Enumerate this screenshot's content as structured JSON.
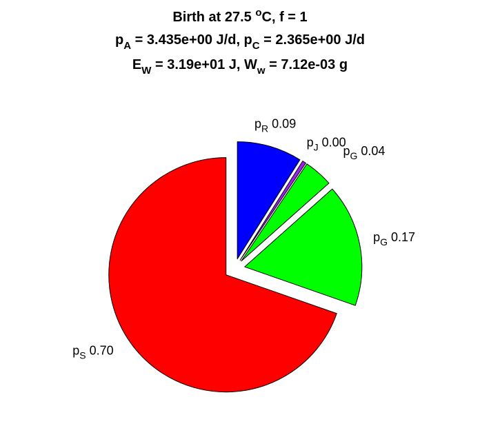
{
  "chart_data": {
    "type": "pie",
    "title_lines": [
      [
        {
          "t": "Birth at 27.5 "
        },
        {
          "t": "o",
          "sup": true
        },
        {
          "t": "C, f = 1"
        }
      ],
      [
        {
          "t": "p"
        },
        {
          "t": "A",
          "sub": true
        },
        {
          "t": " = 3.435e+00 J/d, p"
        },
        {
          "t": "C",
          "sub": true
        },
        {
          "t": " = 2.365e+00 J/d"
        }
      ],
      [
        {
          "t": "E"
        },
        {
          "t": "W",
          "sub": true
        },
        {
          "t": " = 3.19e+01 J, W"
        },
        {
          "t": "w",
          "sub": true
        },
        {
          "t": " = 7.12e-03 g"
        }
      ]
    ],
    "slices": [
      {
        "name": "p",
        "sub": "R",
        "value": 0.09,
        "value_label": "0.09",
        "color": "#0000ff",
        "exploded": true
      },
      {
        "name": "p",
        "sub": "J",
        "value": 0.005,
        "value_label": "0.00",
        "color": "#a020f0",
        "exploded": true
      },
      {
        "name": "p",
        "sub": "G",
        "value": 0.04,
        "value_label": "0.04",
        "color": "#00ff00",
        "exploded": true
      },
      {
        "name": "p",
        "sub": "G",
        "value": 0.17,
        "value_label": "0.17",
        "color": "#00ff00",
        "exploded": true
      },
      {
        "name": "p",
        "sub": "S",
        "value": 0.7,
        "value_label": "0.70",
        "color": "#ff0000",
        "exploded": true
      }
    ],
    "start_direction": "top",
    "direction": "clockwise",
    "legend": "none",
    "grid": false
  }
}
